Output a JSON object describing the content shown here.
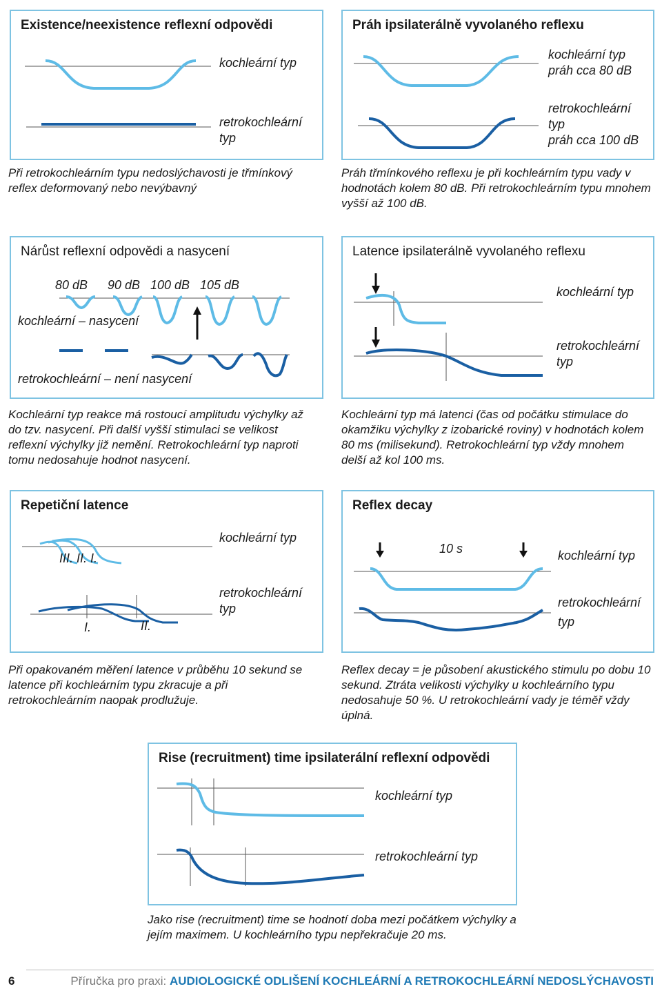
{
  "colors": {
    "light_curve": "#5ebbe6",
    "dark_curve": "#1a5fa3",
    "frame": "#7ec3e2",
    "accent_text": "#1f7ab5"
  },
  "panels": {
    "existence": {
      "title": "Existence/neexistence reflexní odpovědi",
      "label_1": "kochleární typ",
      "label_2": [
        "retrokochleární",
        "typ"
      ],
      "caption": "Při retrokochleárním typu nedoslýchavosti je třmínkový reflex deformovaný nebo nevýbavný"
    },
    "threshold": {
      "title": "Práh ipsilaterálně vyvolaného reflexu",
      "label_1": [
        "kochleární typ",
        "práh cca 80 dB"
      ],
      "label_2": [
        "retrokochleární",
        "typ",
        "práh cca 100 dB"
      ],
      "caption": "Práh třmínkového reflexu je při kochleárním typu vady v hodnotách kolem 80 dB. Při retrokochleárním typu mnohem vyšší až 100 dB."
    },
    "growth": {
      "title": "Nárůst reflexní odpovědi a nasycení",
      "levels": [
        "80 dB",
        "90 dB",
        "100 dB",
        "105 dB"
      ],
      "label_1": "kochleární – nasycení",
      "label_2": "retrokochleární – není nasycení",
      "caption": "Kochleární typ reakce má rostoucí amplitudu výchylky až do tzv. nasycení. Při další vyšší stimulaci se velikost reflexní výchylky již nemění. Retrokochleární typ naproti tomu nedosahuje hodnot nasycení."
    },
    "latency": {
      "title": "Latence ipsilaterálně vyvolaného reflexu",
      "label_1": "kochleární typ",
      "label_2": [
        "retrokochleární",
        "typ"
      ],
      "caption": "Kochleární typ má latenci (čas od počátku stimulace do okamžiku výchylky z izobarické roviny) v hodnotách kolem 80 ms (milisekund). Retrokochleární typ vždy mnohem delší až kol 100 ms."
    },
    "repetition": {
      "title": "Repetiční latence",
      "label_1": "kochleární typ",
      "label_2": [
        "retrokochleární",
        "typ"
      ],
      "marks_top": "III. II. I.",
      "marks_bottom_1": "I.",
      "marks_bottom_2": "II.",
      "caption": "Při opakovaném měření latence v průběhu 10 sekund se latence při kochleárním typu zkracuje a při retrokochleárním naopak prodlužuje."
    },
    "decay": {
      "title": "Reflex decay",
      "duration": "10 s",
      "label_1": "kochleární typ",
      "label_2": [
        "retrokochleární",
        "typ"
      ],
      "caption": "Reflex decay = je působení akustického stimulu po dobu 10 sekund. Ztráta velikosti výchylky u kochleárního typu nedosahuje 50 %. U retrokochleární vady je téměř vždy úplná."
    },
    "rise": {
      "title": "Rise (recruitment) time ipsilaterální reflexní odpovědi",
      "label_1": "kochleární typ",
      "label_2": "retrokochleární typ",
      "caption": "Jako rise (recruitment) time se hodnotí doba mezi počátkem výchylky a jejím maximem. U kochleárního typu nepřekračuje 20 ms."
    }
  },
  "footer": {
    "page": "6",
    "prefix": "Příručka pro praxi:",
    "title": "AUDIOLOGICKÉ ODLIŠENÍ KOCHLEÁRNÍ A RETROKOCHLEÁRNÍ NEDOSLÝCHAVOSTI"
  }
}
